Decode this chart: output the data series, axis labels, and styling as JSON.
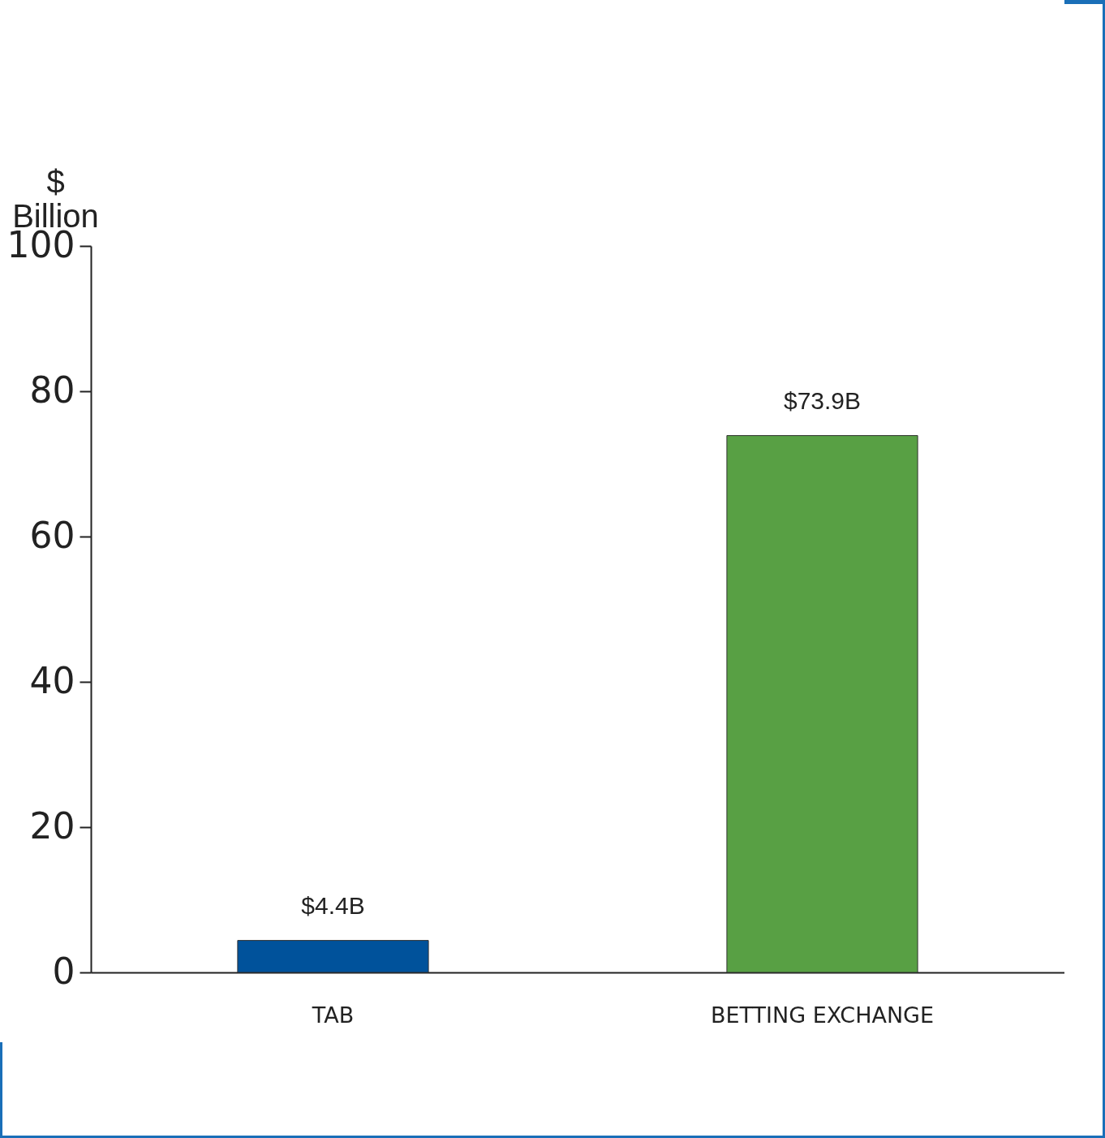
{
  "chart_data": {
    "type": "bar",
    "ylabel": "$ Billion",
    "categories": [
      "TAB",
      "BETTING EXCHANGE"
    ],
    "values": [
      4.4,
      73.9
    ],
    "colors": [
      "#00529b",
      "#58a044"
    ],
    "value_labels": [
      "$4.4B",
      "$73.9B"
    ],
    "ylim": [
      0,
      100
    ],
    "yticks": [
      0,
      20,
      40,
      60,
      80,
      100
    ],
    "grid": false
  }
}
